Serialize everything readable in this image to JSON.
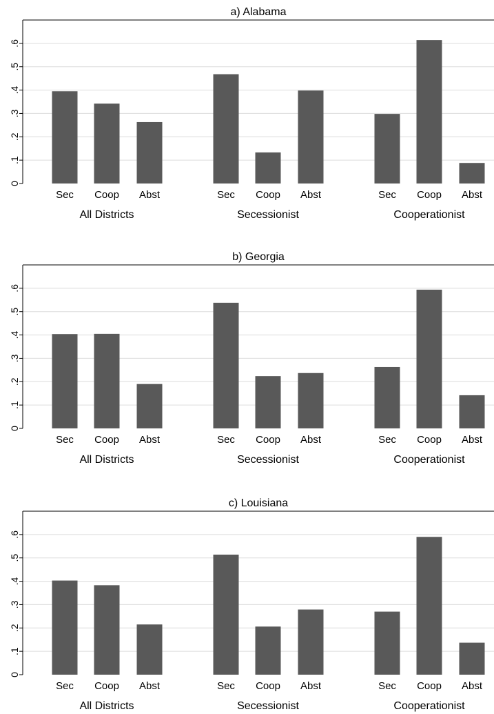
{
  "chart_data": [
    {
      "type": "bar",
      "title": "a) Alabama",
      "ylim": [
        0,
        0.7
      ],
      "yticks": [
        0,
        0.1,
        0.2,
        0.3,
        0.4,
        0.5,
        0.6
      ],
      "ytick_labels": [
        "0",
        ".1",
        ".2",
        ".3",
        ".4",
        ".5",
        ".6"
      ],
      "grid": true,
      "bar_color": "#595959",
      "groups": [
        {
          "label": "All Districts",
          "categories": [
            "Sec",
            "Coop",
            "Abst"
          ],
          "values": [
            0.395,
            0.342,
            0.263
          ]
        },
        {
          "label": "Secessionist",
          "categories": [
            "Sec",
            "Coop",
            "Abst"
          ],
          "values": [
            0.468,
            0.133,
            0.398
          ]
        },
        {
          "label": "Cooperationist",
          "categories": [
            "Sec",
            "Coop",
            "Abst"
          ],
          "values": [
            0.298,
            0.614,
            0.088
          ]
        }
      ]
    },
    {
      "type": "bar",
      "title": "b) Georgia",
      "ylim": [
        0,
        0.7
      ],
      "yticks": [
        0,
        0.1,
        0.2,
        0.3,
        0.4,
        0.5,
        0.6
      ],
      "ytick_labels": [
        "0",
        ".1",
        ".2",
        ".3",
        ".4",
        ".5",
        ".6"
      ],
      "grid": true,
      "bar_color": "#595959",
      "groups": [
        {
          "label": "All Districts",
          "categories": [
            "Sec",
            "Coop",
            "Abst"
          ],
          "values": [
            0.404,
            0.405,
            0.19
          ]
        },
        {
          "label": "Secessionist",
          "categories": [
            "Sec",
            "Coop",
            "Abst"
          ],
          "values": [
            0.538,
            0.224,
            0.237
          ]
        },
        {
          "label": "Cooperationist",
          "categories": [
            "Sec",
            "Coop",
            "Abst"
          ],
          "values": [
            0.263,
            0.594,
            0.142
          ]
        }
      ]
    },
    {
      "type": "bar",
      "title": "c) Louisiana",
      "ylim": [
        0,
        0.7
      ],
      "yticks": [
        0,
        0.1,
        0.2,
        0.3,
        0.4,
        0.5,
        0.6
      ],
      "ytick_labels": [
        "0",
        ".1",
        ".2",
        ".3",
        ".4",
        ".5",
        ".6"
      ],
      "grid": true,
      "bar_color": "#595959",
      "groups": [
        {
          "label": "All Districts",
          "categories": [
            "Sec",
            "Coop",
            "Abst"
          ],
          "values": [
            0.403,
            0.383,
            0.215
          ]
        },
        {
          "label": "Secessionist",
          "categories": [
            "Sec",
            "Coop",
            "Abst"
          ],
          "values": [
            0.514,
            0.206,
            0.279
          ]
        },
        {
          "label": "Cooperationist",
          "categories": [
            "Sec",
            "Coop",
            "Abst"
          ],
          "values": [
            0.27,
            0.59,
            0.137
          ]
        }
      ]
    }
  ]
}
